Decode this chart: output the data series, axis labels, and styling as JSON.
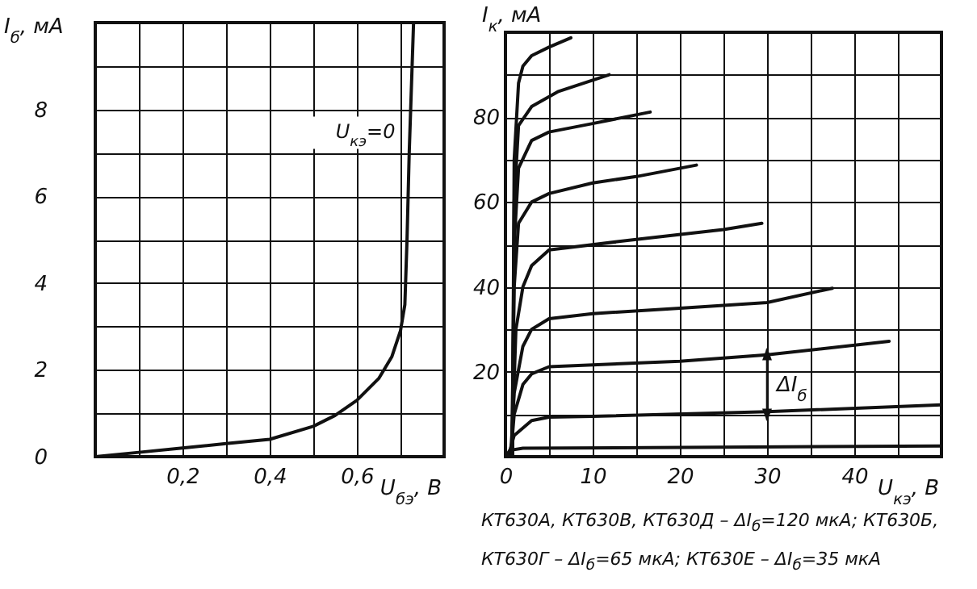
{
  "chart_data": [
    {
      "type": "line",
      "xlabel": "U$_{бэ}$, В",
      "ylabel": "I$_{б}$, мА",
      "xlim": [
        0,
        0.8
      ],
      "ylim": [
        0,
        10
      ],
      "xticks": [
        {
          "value": 0.1,
          "label": null
        },
        {
          "value": 0.2,
          "label": "0,2"
        },
        {
          "value": 0.3,
          "label": null
        },
        {
          "value": 0.4,
          "label": "0,4"
        },
        {
          "value": 0.5,
          "label": null
        },
        {
          "value": 0.6,
          "label": "0,6"
        },
        {
          "value": 0.7,
          "label": null
        }
      ],
      "yticks": [
        0,
        {
          "value": 1,
          "label": null
        },
        2,
        {
          "value": 3,
          "label": null
        },
        4,
        {
          "value": 5,
          "label": null
        },
        6,
        {
          "value": 7,
          "label": null
        },
        8,
        {
          "value": 9,
          "label": null
        }
      ],
      "grid": true,
      "annotations": [
        "U$_{кэ}$=0"
      ],
      "series": [
        {
          "color": "#111111",
          "x": [
            0,
            0.1,
            0.2,
            0.3,
            0.4,
            0.5,
            0.55,
            0.6,
            0.65,
            0.68,
            0.7,
            0.71,
            0.715,
            0.72,
            0.725,
            0.73
          ],
          "values": [
            0,
            0.1,
            0.2,
            0.3,
            0.4,
            0.7,
            0.95,
            1.3,
            1.8,
            2.3,
            2.9,
            3.5,
            5,
            7,
            8.5,
            10
          ]
        }
      ]
    },
    {
      "type": "line",
      "xlabel": "U$_{кэ}$, В",
      "ylabel": "I$_{к}$, мА",
      "xlim": [
        0,
        50
      ],
      "ylim": [
        0,
        100
      ],
      "xticks": [
        0,
        {
          "value": 5,
          "label": null
        },
        10,
        {
          "value": 15,
          "label": null
        },
        20,
        {
          "value": 25,
          "label": null
        },
        30,
        {
          "value": 35,
          "label": null
        },
        40,
        {
          "value": 45,
          "label": null
        }
      ],
      "yticks": [
        {
          "value": 10,
          "label": null
        },
        20,
        {
          "value": 30,
          "label": null
        },
        40,
        {
          "value": 50,
          "label": null
        },
        60,
        {
          "value": 70,
          "label": null
        },
        80,
        {
          "value": 90,
          "label": null
        }
      ],
      "grid": true,
      "annotations": [
        "ΔI$_{б}$",
        "КТ630А, КТ630В, КТ630Д – ΔI$_{б}$=120 мкА; КТ630Б,",
        "КТ630Г – ΔI$_{б}$=65 мкА; КТ630Е – ΔI$_{б}$=35 мкА"
      ],
      "series": [
        {
          "color": "#111111",
          "x": [
            0,
            0.5,
            2,
            50
          ],
          "values": [
            0,
            1.5,
            2,
            2.5
          ]
        },
        {
          "color": "#111111",
          "x": [
            0.3,
            1,
            3,
            5,
            10,
            30,
            50
          ],
          "values": [
            0,
            5,
            8.5,
            9.3,
            9.5,
            10.6,
            12.2
          ]
        },
        {
          "color": "#111111",
          "x": [
            0.6,
            1,
            2,
            3,
            5,
            20,
            30,
            44
          ],
          "values": [
            0,
            10,
            17,
            19.5,
            21.2,
            22.5,
            24,
            27.2
          ]
        },
        {
          "color": "#111111",
          "x": [
            0.6,
            1,
            2,
            3,
            5,
            10,
            20,
            30,
            37.5
          ],
          "values": [
            0,
            15,
            26,
            30,
            32.5,
            33.7,
            35,
            36.3,
            39.7
          ]
        },
        {
          "color": "#111111",
          "x": [
            0.7,
            1.2,
            2,
            3,
            5,
            15,
            25,
            29.4
          ],
          "values": [
            0,
            30,
            40,
            45,
            48.7,
            51.2,
            53.5,
            55
          ]
        },
        {
          "color": "#111111",
          "x": [
            0.7,
            1,
            1.5,
            3,
            5,
            10,
            15,
            21.9
          ],
          "values": [
            0,
            40,
            55,
            60,
            62,
            64.5,
            66,
            68.7
          ]
        },
        {
          "color": "#111111",
          "x": [
            0.8,
            1,
            1.5,
            3,
            5,
            10,
            16.6
          ],
          "values": [
            0,
            50,
            68,
            74.5,
            76.5,
            78.5,
            81.2
          ]
        },
        {
          "color": "#111111",
          "x": [
            0.8,
            1,
            1.5,
            3,
            6,
            11.9
          ],
          "values": [
            0,
            60,
            78,
            82.5,
            86,
            90
          ]
        },
        {
          "color": "#111111",
          "x": [
            0.8,
            1,
            1.5,
            2,
            3,
            5,
            7.5
          ],
          "values": [
            0,
            70,
            88,
            92,
            94.5,
            96.5,
            98.7
          ]
        }
      ]
    }
  ]
}
